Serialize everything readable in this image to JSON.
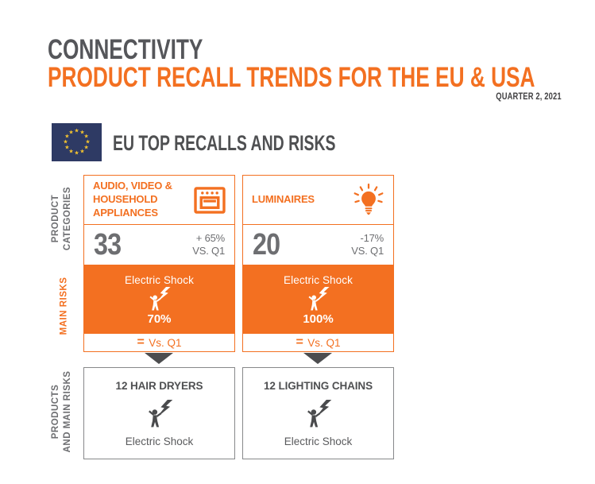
{
  "header": {
    "kicker": "CONNECTIVITY",
    "title": "PRODUCT RECALL TRENDS FOR THE EU & USA",
    "period": "QUARTER 2, 2021"
  },
  "eu_section": {
    "title": "EU TOP RECALLS AND RISKS",
    "flag": "eu-flag"
  },
  "row_labels": {
    "categories_line1": "PRODUCT",
    "categories_line2": "CATEGORIES",
    "risks": "MAIN RISKS",
    "products_line1": "PRODUCTS",
    "products_line2": "AND MAIN RISKS"
  },
  "cards": [
    {
      "category": "AUDIO, VIDEO & HOUSEHOLD APPLIANCES",
      "icon": "oven-icon",
      "count": "33",
      "change": "+ 65%",
      "change_vs": "VS. Q1",
      "risk": "Electric Shock",
      "risk_icon": "electric-shock-icon",
      "risk_pct": "70%",
      "trend_symbol": "=",
      "trend_label": "Vs. Q1"
    },
    {
      "category": "LUMINAIRES",
      "icon": "lightbulb-icon",
      "count": "20",
      "change": "-17%",
      "change_vs": "VS. Q1",
      "risk": "Electric Shock",
      "risk_icon": "electric-shock-icon",
      "risk_pct": "100%",
      "trend_symbol": "=",
      "trend_label": "Vs. Q1"
    }
  ],
  "products": [
    {
      "title": "12 HAIR DRYERS",
      "icon": "electric-shock-icon",
      "risk": "Electric Shock"
    },
    {
      "title": "12 LIGHTING CHAINS",
      "icon": "electric-shock-icon",
      "risk": "Electric Shock"
    }
  ],
  "colors": {
    "accent_orange": "#F37021",
    "dark_gray": "#55565A",
    "mid_gray": "#6D6E71",
    "flag_blue": "#2E3A64",
    "star_gold": "#F6C52E",
    "box_border_gray": "#87888A"
  }
}
